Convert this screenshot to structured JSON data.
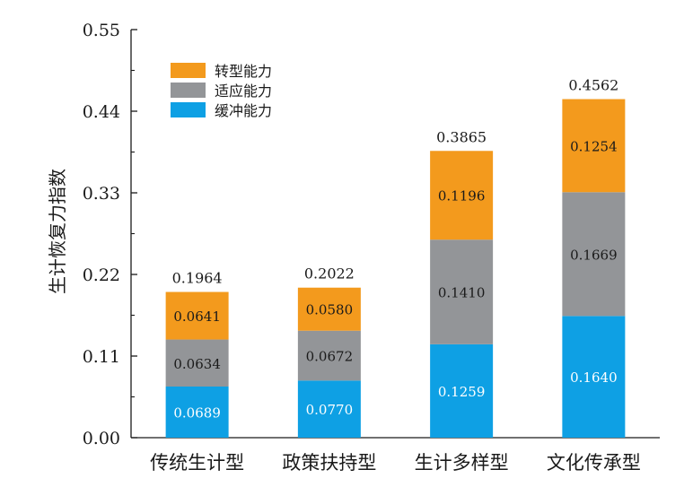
{
  "chart_data": {
    "type": "stacked-bar",
    "title": "",
    "xlabel": "",
    "ylabel": "生计恢复力指数",
    "ylim": [
      0,
      0.55
    ],
    "yticks": [
      "0.00",
      "0.11",
      "0.22",
      "0.33",
      "0.44",
      "0.55"
    ],
    "ytick_values": [
      0,
      0.11,
      0.22,
      0.33,
      0.44,
      0.55
    ],
    "grid": false,
    "legend_position": "top-left",
    "categories": [
      "传统生计型",
      "政策扶持型",
      "生计多样型",
      "文化传承型"
    ],
    "series": [
      {
        "name": "缓冲能力",
        "color": "#0ea0e4",
        "label_color": "#ffffff",
        "values": [
          0.0689,
          0.077,
          0.1259,
          0.164
        ],
        "labels": [
          "0.0689",
          "0.0770",
          "0.1259",
          "0.1640"
        ]
      },
      {
        "name": "适应能力",
        "color": "#939598",
        "label_color": "#1a1a1a",
        "values": [
          0.0634,
          0.0672,
          0.141,
          0.1669
        ],
        "labels": [
          "0.0634",
          "0.0672",
          "0.1410",
          "0.1669"
        ]
      },
      {
        "name": "转型能力",
        "color": "#f39a1d",
        "label_color": "#1a1a1a",
        "values": [
          0.0641,
          0.058,
          0.1196,
          0.1254
        ],
        "labels": [
          "0.0641",
          "0.0580",
          "0.1196",
          "0.1254"
        ]
      }
    ],
    "legend_order": [
      "转型能力",
      "适应能力",
      "缓冲能力"
    ],
    "totals": [
      0.1964,
      0.2022,
      0.3865,
      0.4562
    ],
    "total_labels": [
      "0.1964",
      "0.2022",
      "0.3865",
      "0.4562"
    ]
  }
}
